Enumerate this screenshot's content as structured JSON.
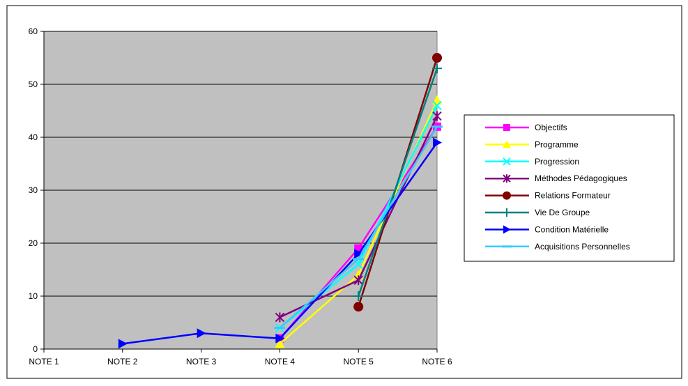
{
  "chart_data": {
    "type": "line",
    "categories": [
      "NOTE 1",
      "NOTE 2",
      "NOTE 3",
      "NOTE 4",
      "NOTE 5",
      "NOTE 6"
    ],
    "ylim": [
      0,
      60
    ],
    "yticks": [
      0,
      10,
      20,
      30,
      40,
      50,
      60
    ],
    "grid": "horizontal",
    "plot_background": "#c0c0c0",
    "legend_position": "right",
    "series": [
      {
        "name": "Objectifs",
        "color": "#ff00ff",
        "marker": "square",
        "values": [
          null,
          null,
          null,
          2,
          19,
          42
        ]
      },
      {
        "name": "Programme",
        "color": "#ffff00",
        "marker": "triangle",
        "values": [
          null,
          null,
          null,
          1,
          14,
          47
        ]
      },
      {
        "name": "Progression",
        "color": "#00ffff",
        "marker": "x",
        "values": [
          null,
          null,
          null,
          4,
          16,
          46
        ]
      },
      {
        "name": "Méthodes Pédagogiques",
        "color": "#800080",
        "marker": "star",
        "values": [
          null,
          null,
          null,
          6,
          13,
          44
        ]
      },
      {
        "name": "Relations Formateur",
        "color": "#800000",
        "marker": "circle",
        "values": [
          null,
          null,
          null,
          null,
          8,
          55
        ]
      },
      {
        "name": "Vie De Groupe",
        "color": "#008080",
        "marker": "plus",
        "values": [
          null,
          null,
          null,
          null,
          10,
          53
        ]
      },
      {
        "name": "Condition Matérielle",
        "color": "#0000ff",
        "marker": "triangle-right",
        "values": [
          null,
          1,
          3,
          2,
          18,
          39
        ]
      },
      {
        "name": "Acquisitions Personnelles",
        "color": "#33ccff",
        "marker": "dash",
        "values": [
          null,
          null,
          null,
          4,
          17,
          42
        ]
      }
    ]
  }
}
